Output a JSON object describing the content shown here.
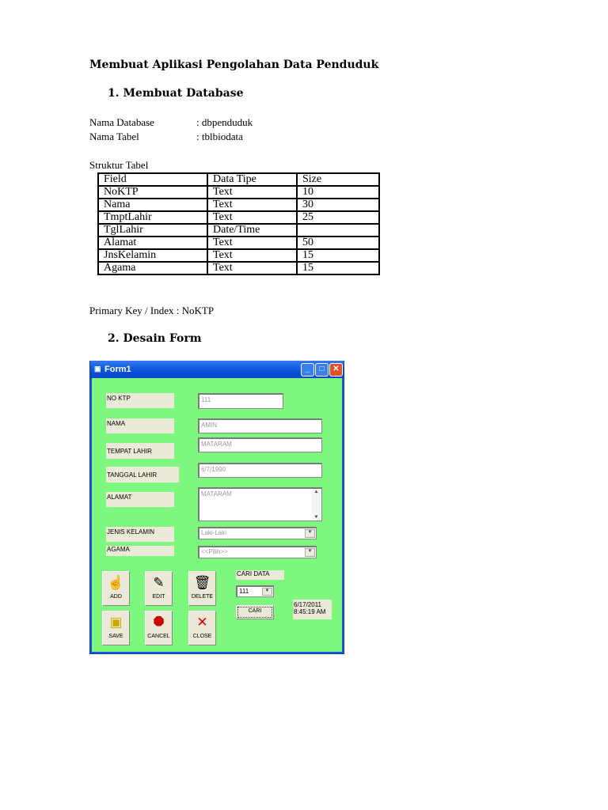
{
  "title": "Membuat Aplikasi Pengolahan Data Penduduk",
  "section1": "1.  Membuat Database",
  "db_name_label": "Nama Database",
  "db_name_value": ": dbpenduduk",
  "table_name_label": "Nama Tabel",
  "table_name_value": ":  tblbiodata",
  "structure_label": "Struktur Tabel",
  "table": {
    "headers": [
      "Field",
      "Data Tipe",
      "Size"
    ],
    "rows": [
      [
        "NoKTP",
        "Text",
        "10"
      ],
      [
        "Nama",
        "Text",
        "30"
      ],
      [
        "TmptLahir",
        "Text",
        "25"
      ],
      [
        "TglLahir",
        "Date/Time",
        ""
      ],
      [
        "Alamat",
        "Text",
        "50"
      ],
      [
        "JnsKelamin",
        "Text",
        "15"
      ],
      [
        "Agama",
        "Text",
        "15"
      ]
    ]
  },
  "primary_key": "Primary Key / Index : NoKTP",
  "section2": "2.  Desain Form",
  "form": {
    "title": "Form1",
    "labels": {
      "noktp": "NO KTP",
      "nama": "NAMA",
      "tempat": "TEMPAT LAHIR",
      "tanggal": "TANGGAL LAHIR",
      "alamat": "ALAMAT",
      "jk": "JENIS KELAMIN",
      "agama": "AGAMA",
      "cari_data": "CARI DATA"
    },
    "values": {
      "noktp": "111",
      "nama": "AMIN",
      "tempat": "MATARAM",
      "tanggal": "6/7/1990",
      "alamat": "MATARAM",
      "jk": "Laki-Laki",
      "agama": "<<Pilih>>",
      "cari": "111"
    },
    "buttons": {
      "add": "ADD",
      "edit": "EDIT",
      "delete": "DELETE",
      "save": "SAVE",
      "cancel": "CANCEL",
      "close": "CLOSE",
      "cari": "CARI"
    },
    "datetime_date": "6/17/2011",
    "datetime_time": "8:45:19 AM"
  }
}
